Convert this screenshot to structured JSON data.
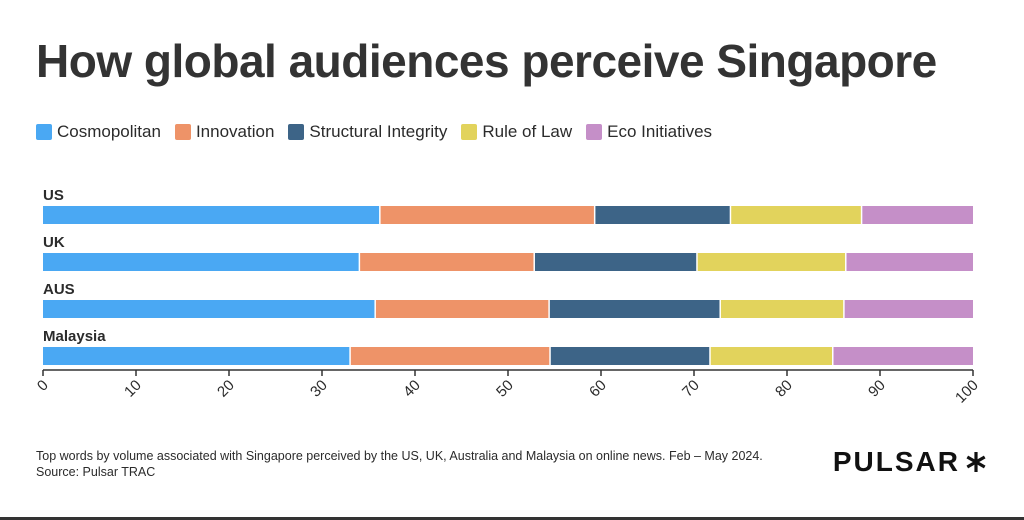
{
  "title": "How global audiences perceive Singapore",
  "legend": [
    {
      "label": "Cosmopolitan",
      "color": "#4aa8f3"
    },
    {
      "label": "Innovation",
      "color": "#ee9368"
    },
    {
      "label": "Structural Integrity",
      "color": "#3d6487"
    },
    {
      "label": "Rule of Law",
      "color": "#e2d35c"
    },
    {
      "label": "Eco Initiatives",
      "color": "#c58fc8"
    }
  ],
  "chart_data": {
    "type": "bar",
    "orientation": "horizontal",
    "stacked": true,
    "categories": [
      "US",
      "UK",
      "AUS",
      "Malaysia"
    ],
    "series": [
      {
        "name": "Cosmopolitan",
        "color": "#4aa8f3",
        "values": [
          36.3,
          34.1,
          35.8,
          33.1
        ]
      },
      {
        "name": "Innovation",
        "color": "#ee9368",
        "values": [
          23.1,
          18.8,
          18.7,
          21.5
        ]
      },
      {
        "name": "Structural Integrity",
        "color": "#3d6487",
        "values": [
          14.6,
          17.5,
          18.4,
          17.2
        ]
      },
      {
        "name": "Rule of Law",
        "color": "#e2d35c",
        "values": [
          14.1,
          16.0,
          13.3,
          13.2
        ]
      },
      {
        "name": "Eco Initiatives",
        "color": "#c58fc8",
        "values": [
          11.9,
          13.6,
          13.8,
          15.0
        ]
      }
    ],
    "xlim": [
      0,
      100
    ],
    "xticks": [
      0,
      10,
      20,
      30,
      40,
      50,
      60,
      70,
      80,
      90,
      100
    ],
    "grid": false,
    "legend_position": "top-left"
  },
  "footnote": {
    "line1": "Top words by volume associated with Singapore perceived by the US, UK, Australia and Malaysia on online news. Feb – May 2024.",
    "line2": "Source: Pulsar TRAC"
  },
  "brand": "PULSAR"
}
